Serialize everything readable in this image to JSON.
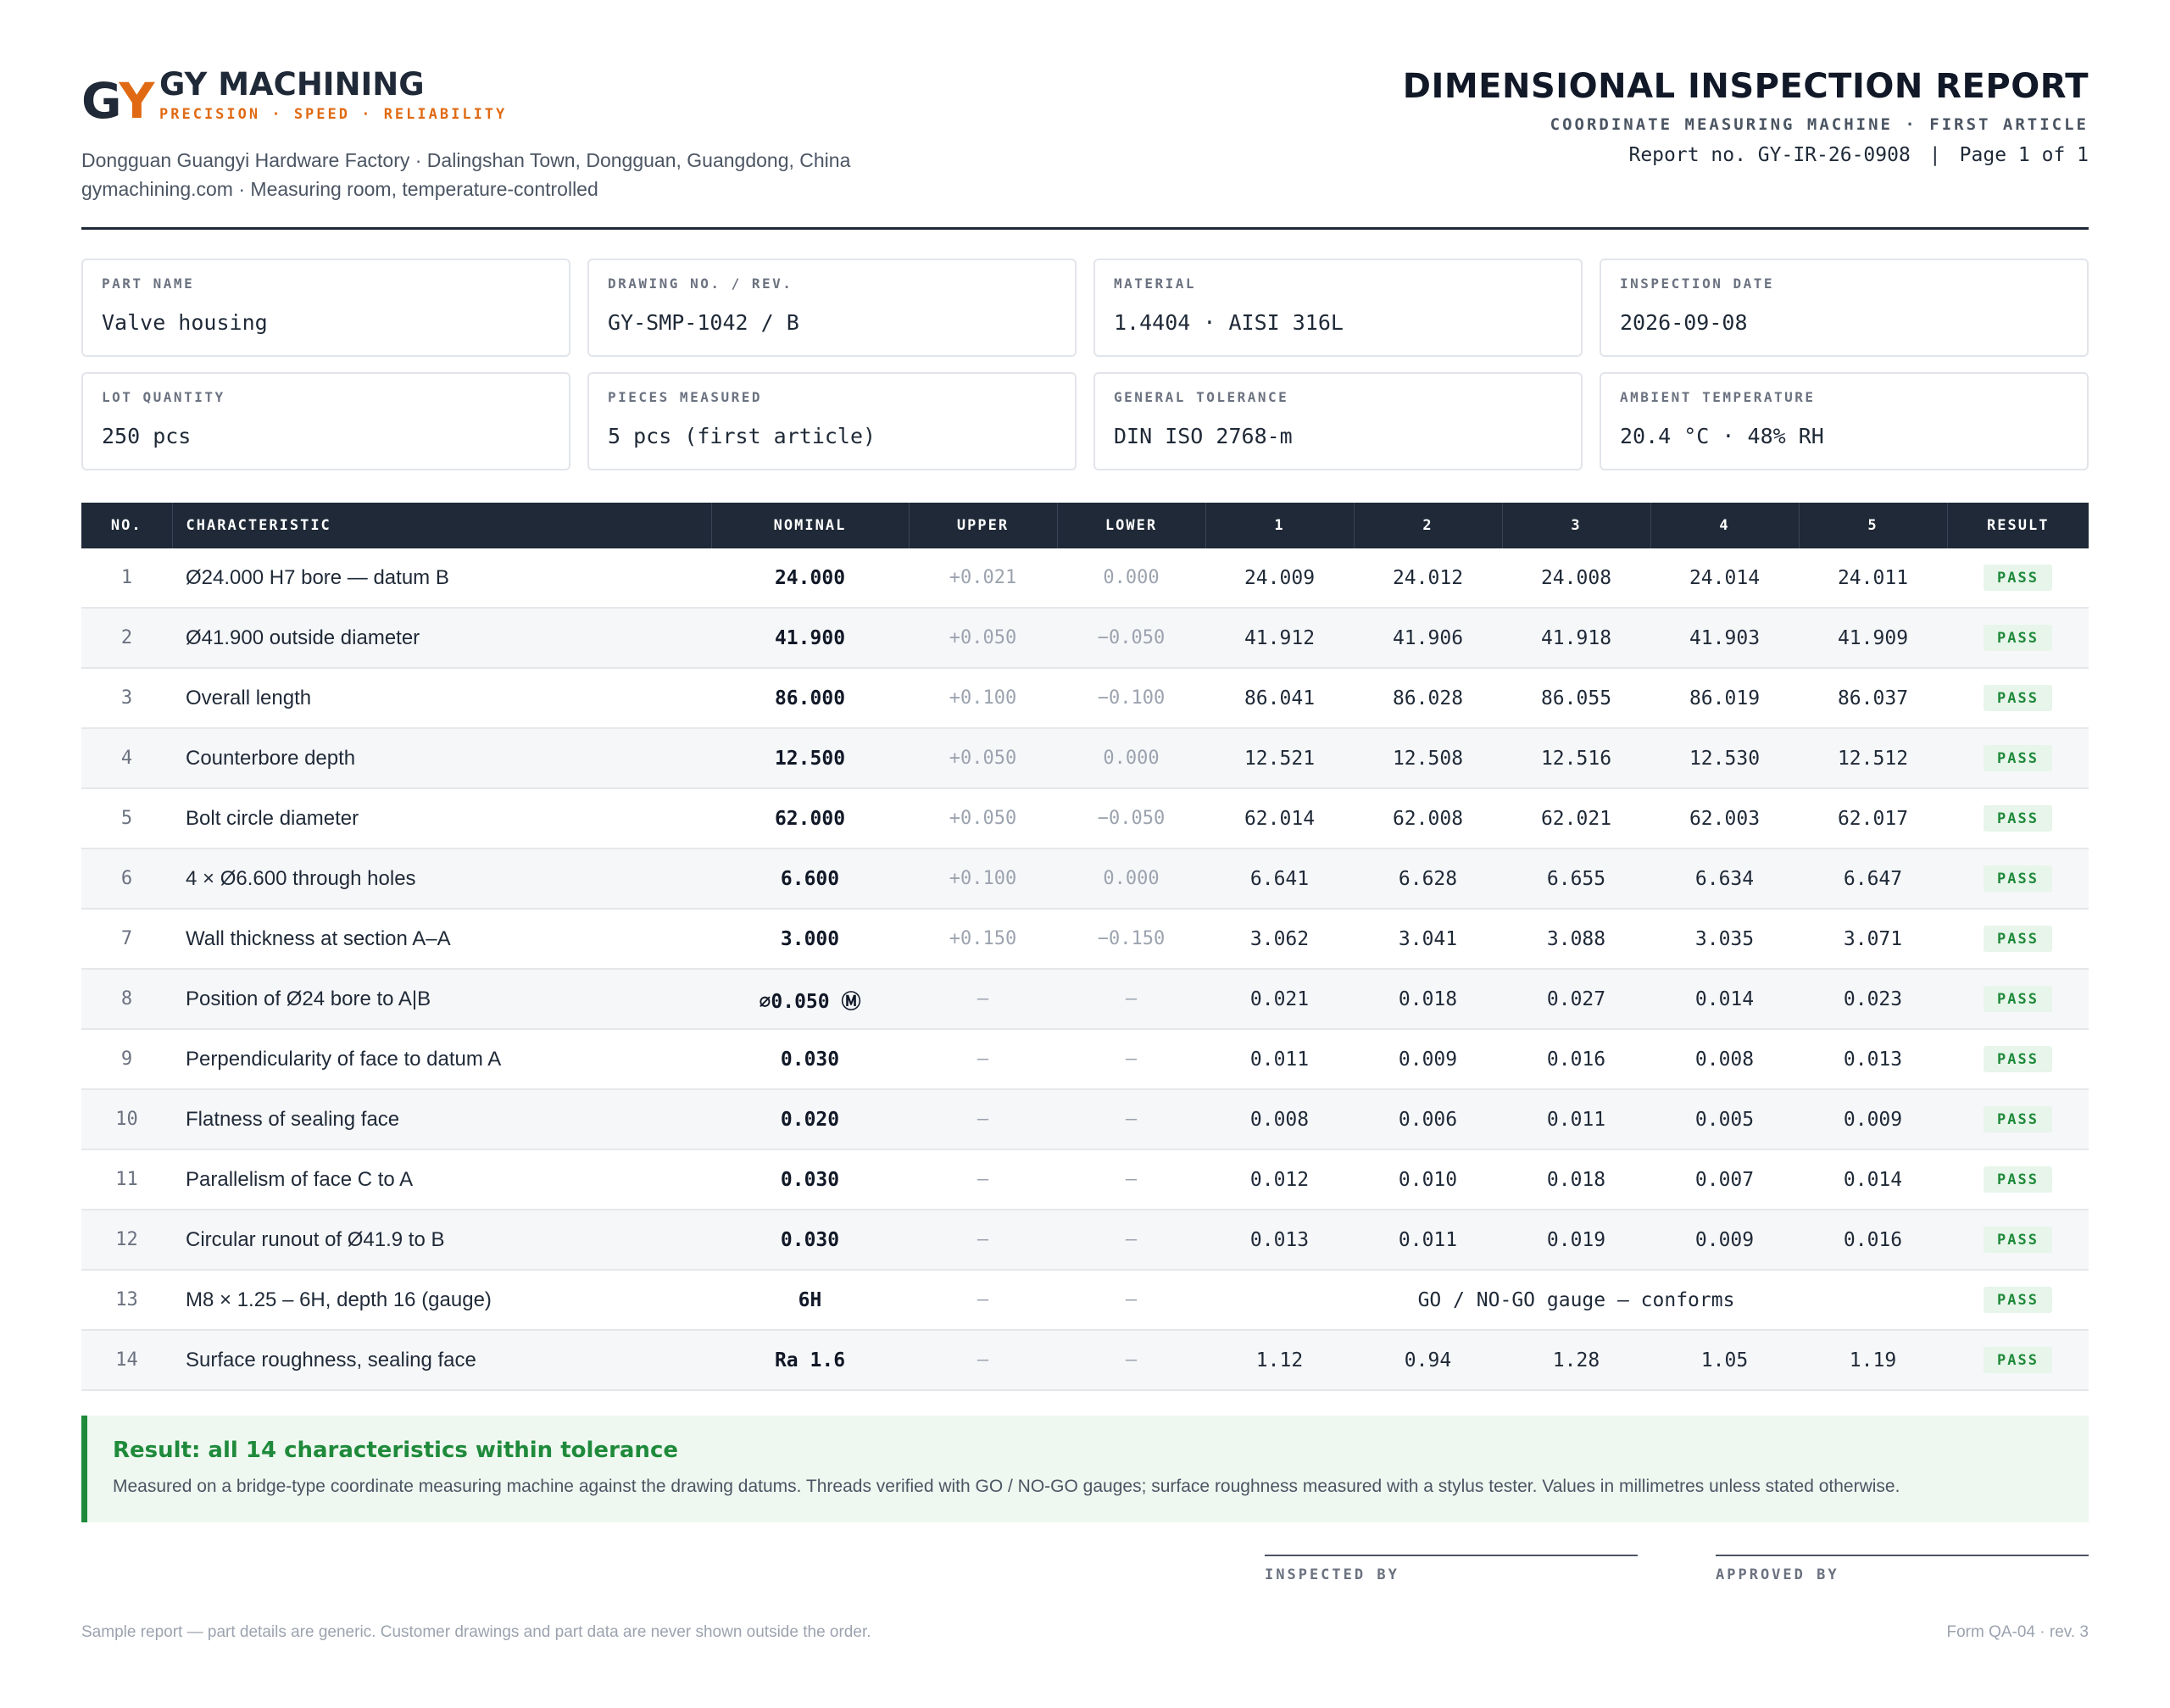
{
  "company": {
    "logo_g": "G",
    "logo_y": "Y",
    "name": "GY MACHINING",
    "tagline": "PRECISION · SPEED · RELIABILITY",
    "address_line1": "Dongguan Guangyi Hardware Factory · Dalingshan Town, Dongguan, Guangdong, China",
    "address_line2": "gymachining.com · Measuring room, temperature-controlled",
    "brand_color": "#e06a14"
  },
  "report": {
    "title": "DIMENSIONAL INSPECTION REPORT",
    "subtitle": "COORDINATE MEASURING MACHINE · FIRST ARTICLE",
    "report_no": "Report no. GY-IR-26-0908",
    "separator": "|",
    "page": "Page 1 of 1"
  },
  "info": [
    {
      "label": "PART NAME",
      "value": "Valve housing"
    },
    {
      "label": "DRAWING NO. / REV.",
      "value": "GY-SMP-1042 / B"
    },
    {
      "label": "MATERIAL",
      "value": "1.4404 · AISI 316L"
    },
    {
      "label": "INSPECTION DATE",
      "value": "2026-09-08"
    },
    {
      "label": "LOT QUANTITY",
      "value": "250 pcs"
    },
    {
      "label": "PIECES MEASURED",
      "value": "5 pcs (first article)"
    },
    {
      "label": "GENERAL TOLERANCE",
      "value": "DIN ISO 2768-m"
    },
    {
      "label": "AMBIENT TEMPERATURE",
      "value": "20.4 °C · 48% RH"
    }
  ],
  "table": {
    "headers": [
      "NO.",
      "CHARACTERISTIC",
      "NOMINAL",
      "UPPER",
      "LOWER",
      "1",
      "2",
      "3",
      "4",
      "5",
      "RESULT"
    ],
    "rows": [
      {
        "no": "1",
        "char": "Ø24.000 H7 bore — datum B",
        "nominal": "24.000",
        "upper": "+0.021",
        "lower": "0.000",
        "m": [
          "24.009",
          "24.012",
          "24.008",
          "24.014",
          "24.011"
        ],
        "result": "PASS"
      },
      {
        "no": "2",
        "char": "Ø41.900 outside diameter",
        "nominal": "41.900",
        "upper": "+0.050",
        "lower": "−0.050",
        "m": [
          "41.912",
          "41.906",
          "41.918",
          "41.903",
          "41.909"
        ],
        "result": "PASS"
      },
      {
        "no": "3",
        "char": "Overall length",
        "nominal": "86.000",
        "upper": "+0.100",
        "lower": "−0.100",
        "m": [
          "86.041",
          "86.028",
          "86.055",
          "86.019",
          "86.037"
        ],
        "result": "PASS"
      },
      {
        "no": "4",
        "char": "Counterbore depth",
        "nominal": "12.500",
        "upper": "+0.050",
        "lower": "0.000",
        "m": [
          "12.521",
          "12.508",
          "12.516",
          "12.530",
          "12.512"
        ],
        "result": "PASS"
      },
      {
        "no": "5",
        "char": "Bolt circle diameter",
        "nominal": "62.000",
        "upper": "+0.050",
        "lower": "−0.050",
        "m": [
          "62.014",
          "62.008",
          "62.021",
          "62.003",
          "62.017"
        ],
        "result": "PASS"
      },
      {
        "no": "6",
        "char": "4 × Ø6.600 through holes",
        "nominal": "6.600",
        "upper": "+0.100",
        "lower": "0.000",
        "m": [
          "6.641",
          "6.628",
          "6.655",
          "6.634",
          "6.647"
        ],
        "result": "PASS"
      },
      {
        "no": "7",
        "char": "Wall thickness at section A–A",
        "nominal": "3.000",
        "upper": "+0.150",
        "lower": "−0.150",
        "m": [
          "3.062",
          "3.041",
          "3.088",
          "3.035",
          "3.071"
        ],
        "result": "PASS"
      },
      {
        "no": "8",
        "char": "Position of Ø24 bore to A|B",
        "nominal": "⌀0.050 Ⓜ",
        "upper": "–",
        "lower": "–",
        "m": [
          "0.021",
          "0.018",
          "0.027",
          "0.014",
          "0.023"
        ],
        "result": "PASS"
      },
      {
        "no": "9",
        "char": "Perpendicularity of face to datum A",
        "nominal": "0.030",
        "upper": "–",
        "lower": "–",
        "m": [
          "0.011",
          "0.009",
          "0.016",
          "0.008",
          "0.013"
        ],
        "result": "PASS"
      },
      {
        "no": "10",
        "char": "Flatness of sealing face",
        "nominal": "0.020",
        "upper": "–",
        "lower": "–",
        "m": [
          "0.008",
          "0.006",
          "0.011",
          "0.005",
          "0.009"
        ],
        "result": "PASS"
      },
      {
        "no": "11",
        "char": "Parallelism of face C to A",
        "nominal": "0.030",
        "upper": "–",
        "lower": "–",
        "m": [
          "0.012",
          "0.010",
          "0.018",
          "0.007",
          "0.014"
        ],
        "result": "PASS"
      },
      {
        "no": "12",
        "char": "Circular runout of Ø41.9 to B",
        "nominal": "0.030",
        "upper": "–",
        "lower": "–",
        "m": [
          "0.013",
          "0.011",
          "0.019",
          "0.009",
          "0.016"
        ],
        "result": "PASS"
      },
      {
        "no": "13",
        "char": "M8 × 1.25 – 6H, depth 16 (gauge)",
        "nominal": "6H",
        "upper": "–",
        "lower": "–",
        "merged": "GO / NO-GO gauge — conforms",
        "result": "PASS"
      },
      {
        "no": "14",
        "char": "Surface roughness, sealing face",
        "nominal": "Ra 1.6",
        "upper": "–",
        "lower": "–",
        "m": [
          "1.12",
          "0.94",
          "1.28",
          "1.05",
          "1.19"
        ],
        "result": "PASS"
      }
    ]
  },
  "summary": {
    "title": "Result: all 14 characteristics within tolerance",
    "text": "Measured on a bridge-type coordinate measuring machine against the drawing datums. Threads verified with GO / NO-GO gauges; surface roughness measured with a stylus tester. Values in millimetres unless stated otherwise."
  },
  "signatures": {
    "inspected": "INSPECTED BY",
    "approved": "APPROVED BY"
  },
  "footer": {
    "left": "Sample report — part details are generic. Customer drawings and part data are never shown outside the order.",
    "right": "Form QA-04 · rev. 3"
  },
  "colors": {
    "header_bg": "#1f2937",
    "pass_green": "#1f8a3b",
    "pass_bg": "#e7f5ea"
  }
}
